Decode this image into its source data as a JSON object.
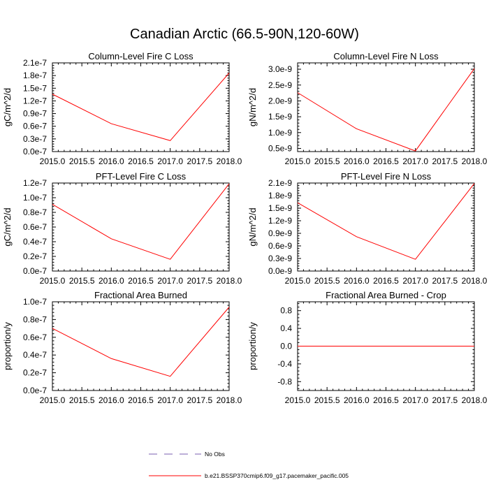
{
  "figure": {
    "title": "Canadian Arctic (66.5-90N,120-60W)"
  },
  "legend": {
    "items": [
      {
        "label": "No Obs",
        "color": "#7a5fb0",
        "style": "dashed"
      },
      {
        "label": "b.e21.BSSP370cmip6.f09_g17.pacemaker_pacific.005",
        "color": "#ff0000",
        "style": "solid"
      }
    ]
  },
  "chart_data": [
    {
      "type": "line",
      "title": "Column-Level Fire C Loss",
      "ylabel": "gC/m^2/d",
      "xlim": [
        2015.0,
        2018.0
      ],
      "ylim": [
        0.0,
        2.1e-07
      ],
      "xticks": [
        "2015.0",
        "2015.5",
        "2016.0",
        "2016.5",
        "2017.0",
        "2017.5",
        "2018.0"
      ],
      "yticks": [
        "0.0e-7",
        "0.3e-7",
        "0.6e-7",
        "0.9e-7",
        "1.2e-7",
        "1.5e-7",
        "1.8e-7",
        "2.1e-7"
      ],
      "ytick_values": [
        0.0,
        3e-08,
        6e-08,
        9e-08,
        1.2e-07,
        1.5e-07,
        1.8e-07,
        2.1e-07
      ],
      "series": [
        {
          "color": "#ff0000",
          "x": [
            2015,
            2016,
            2017,
            2018
          ],
          "y": [
            1.36e-07,
            6.6e-08,
            2.6e-08,
            1.86e-07
          ]
        }
      ]
    },
    {
      "type": "line",
      "title": "Column-Level Fire N Loss",
      "ylabel": "gN/m^2/d",
      "xlim": [
        2015.0,
        2018.0
      ],
      "ylim": [
        4e-10,
        3.2e-09
      ],
      "xticks": [
        "2015.0",
        "2015.5",
        "2016.0",
        "2016.5",
        "2017.0",
        "2017.5",
        "2018.0"
      ],
      "yticks": [
        "0.5e-9",
        "1.0e-9",
        "1.5e-9",
        "2.0e-9",
        "2.5e-9",
        "3.0e-9"
      ],
      "ytick_values": [
        5e-10,
        1e-09,
        1.5e-09,
        2e-09,
        2.5e-09,
        3e-09
      ],
      "series": [
        {
          "color": "#ff0000",
          "x": [
            2015,
            2016,
            2017,
            2018
          ],
          "y": [
            2.26e-09,
            1.12e-09,
            4.2e-10,
            3.02e-09
          ]
        }
      ]
    },
    {
      "type": "line",
      "title": "PFT-Level Fire C Loss",
      "ylabel": "gC/m^2/d",
      "xlim": [
        2015.0,
        2018.0
      ],
      "ylim": [
        0.0,
        1.2e-07
      ],
      "xticks": [
        "2015.0",
        "2015.5",
        "2016.0",
        "2016.5",
        "2017.0",
        "2017.5",
        "2018.0"
      ],
      "yticks": [
        "0.0e-7",
        "0.2e-7",
        "0.4e-7",
        "0.6e-7",
        "0.8e-7",
        "1.0e-7",
        "1.2e-7"
      ],
      "ytick_values": [
        0.0,
        2e-08,
        4e-08,
        6e-08,
        8e-08,
        1e-07,
        1.2e-07
      ],
      "series": [
        {
          "color": "#ff0000",
          "x": [
            2015,
            2016,
            2017,
            2018
          ],
          "y": [
            9.1e-08,
            4.4e-08,
            1.6e-08,
            1.19e-07
          ]
        }
      ]
    },
    {
      "type": "line",
      "title": "PFT-Level Fire N Loss",
      "ylabel": "gN/m^2/d",
      "xlim": [
        2015.0,
        2018.0
      ],
      "ylim": [
        0.0,
        2.1e-09
      ],
      "xticks": [
        "2015.0",
        "2015.5",
        "2016.0",
        "2016.5",
        "2017.0",
        "2017.5",
        "2018.0"
      ],
      "yticks": [
        "0.0e-9",
        "0.3e-9",
        "0.6e-9",
        "0.9e-9",
        "1.2e-9",
        "1.5e-9",
        "1.8e-9",
        "2.1e-9"
      ],
      "ytick_values": [
        0.0,
        3e-10,
        6e-10,
        9e-10,
        1.2e-09,
        1.5e-09,
        1.8e-09,
        2.1e-09
      ],
      "series": [
        {
          "color": "#ff0000",
          "x": [
            2015,
            2016,
            2017,
            2018
          ],
          "y": [
            1.63e-09,
            8.2e-10,
            2.8e-10,
            2.09e-09
          ]
        }
      ]
    },
    {
      "type": "line",
      "title": "Fractional Area Burned",
      "ylabel": "proportion/y",
      "xlim": [
        2015.0,
        2018.0
      ],
      "ylim": [
        0.0,
        1e-07
      ],
      "xticks": [
        "2015.0",
        "2015.5",
        "2016.0",
        "2016.5",
        "2017.0",
        "2017.5",
        "2018.0"
      ],
      "yticks": [
        "0.0e-7",
        "0.2e-7",
        "0.4e-7",
        "0.6e-7",
        "0.8e-7",
        "1.0e-7"
      ],
      "ytick_values": [
        0.0,
        2e-08,
        4e-08,
        6e-08,
        8e-08,
        1e-07
      ],
      "series": [
        {
          "color": "#ff0000",
          "x": [
            2015,
            2016,
            2017,
            2018
          ],
          "y": [
            7e-08,
            3.6e-08,
            1.6e-08,
            9.4e-08
          ]
        }
      ]
    },
    {
      "type": "line",
      "title": "Fractional Area Burned - Crop",
      "ylabel": "proportion/y",
      "xlim": [
        2015.0,
        2018.0
      ],
      "ylim": [
        -1.0,
        1.0
      ],
      "xticks": [
        "2015.0",
        "2015.5",
        "2016.0",
        "2016.5",
        "2017.0",
        "2017.5",
        "2018.0"
      ],
      "yticks": [
        "-0.8",
        "-0.4",
        "0.0",
        "0.4",
        "0.8"
      ],
      "ytick_values": [
        -0.8,
        -0.4,
        0.0,
        0.4,
        0.8
      ],
      "series": [
        {
          "color": "#ff0000",
          "x": [
            2015,
            2016,
            2017,
            2018
          ],
          "y": [
            0,
            0,
            0,
            0
          ]
        }
      ]
    }
  ]
}
